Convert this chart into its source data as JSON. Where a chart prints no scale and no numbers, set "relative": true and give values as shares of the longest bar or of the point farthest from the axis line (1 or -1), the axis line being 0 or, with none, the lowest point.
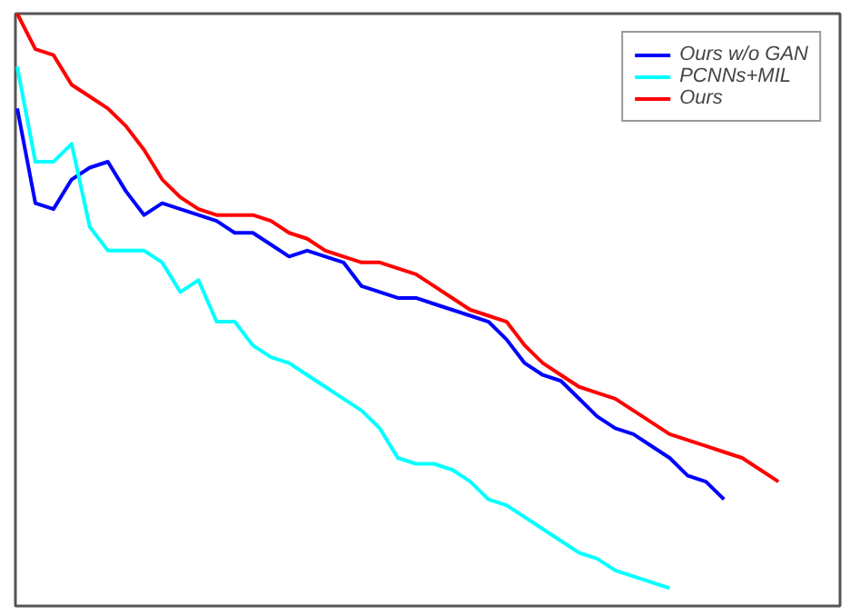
{
  "chart_data": {
    "type": "line",
    "relative": true,
    "legend": "top right",
    "grid": false,
    "categories": [
      null,
      null,
      null,
      null,
      null,
      null,
      null,
      null,
      null,
      null,
      null,
      null,
      null,
      null,
      null,
      null,
      null,
      null,
      null,
      null,
      null,
      null,
      null,
      null,
      null,
      null,
      null,
      null,
      null,
      null,
      null,
      null,
      null,
      null,
      null,
      null,
      null,
      null,
      null,
      null,
      null,
      null,
      null
    ],
    "series": [
      {
        "name": "Ours w/o GAN",
        "color": "#0000ff",
        "values": [
          0.84,
          0.68,
          0.67,
          0.72,
          0.74,
          0.75,
          0.7,
          0.66,
          0.68,
          0.67,
          0.66,
          0.65,
          0.63,
          0.63,
          0.61,
          0.59,
          0.6,
          0.59,
          0.58,
          0.54,
          0.53,
          0.52,
          0.52,
          0.51,
          0.5,
          0.49,
          0.48,
          0.45,
          0.41,
          0.39,
          0.38,
          0.35,
          0.32,
          0.3,
          0.29,
          0.27,
          0.25,
          0.22,
          0.21,
          0.18,
          null,
          null,
          null
        ]
      },
      {
        "name": "PCNNs+MIL",
        "color": "#00ffff",
        "values": [
          0.91,
          0.75,
          0.75,
          0.78,
          0.64,
          0.6,
          0.6,
          0.6,
          0.58,
          0.53,
          0.55,
          0.48,
          0.48,
          0.44,
          0.42,
          0.41,
          0.39,
          0.37,
          0.35,
          0.33,
          0.3,
          0.25,
          0.24,
          0.24,
          0.23,
          0.21,
          0.18,
          0.17,
          0.15,
          0.13,
          0.11,
          0.09,
          0.08,
          0.06,
          0.05,
          0.04,
          0.03,
          null,
          null,
          null,
          null,
          null,
          null
        ]
      },
      {
        "name": "Ours",
        "color": "#ff0000",
        "values": [
          1.0,
          0.94,
          0.93,
          0.88,
          0.86,
          0.84,
          0.81,
          0.77,
          0.72,
          0.69,
          0.67,
          0.66,
          0.66,
          0.66,
          0.65,
          0.63,
          0.62,
          0.6,
          0.59,
          0.58,
          0.58,
          0.57,
          0.56,
          0.54,
          0.52,
          0.5,
          0.49,
          0.48,
          0.44,
          0.41,
          0.39,
          0.37,
          0.36,
          0.35,
          0.33,
          0.31,
          0.29,
          0.28,
          0.27,
          0.26,
          0.25,
          0.23,
          0.21
        ]
      }
    ]
  }
}
